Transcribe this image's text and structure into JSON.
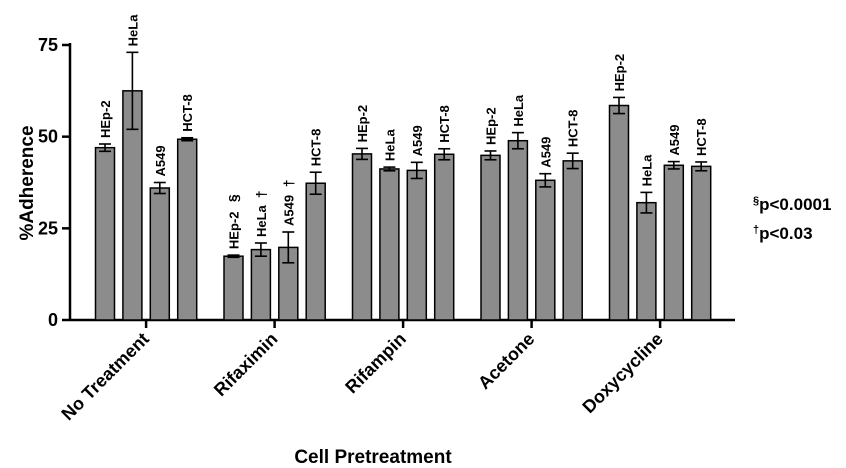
{
  "chart_data": {
    "type": "bar",
    "xlabel": "Cell Pretreatment",
    "ylabel": "%Adherence",
    "ylim": [
      0,
      75
    ],
    "yticks": [
      0,
      25,
      50,
      75
    ],
    "bar_color": "#8c8c8c",
    "groups": [
      {
        "category": "No Treatment",
        "bars": [
          {
            "label": "HEp-2",
            "value": 47,
            "error": 1,
            "mark": ""
          },
          {
            "label": "HeLa",
            "value": 62.5,
            "error": 10.5,
            "mark": ""
          },
          {
            "label": "A549",
            "value": 36,
            "error": 1.5,
            "mark": ""
          },
          {
            "label": "HCT-8",
            "value": 49.3,
            "error": 0.4,
            "mark": ""
          }
        ]
      },
      {
        "category": "Rifaximin",
        "bars": [
          {
            "label": "HEp-2",
            "value": 17.4,
            "error": 0.3,
            "mark": "§"
          },
          {
            "label": "HeLa",
            "value": 19.2,
            "error": 1.8,
            "mark": "†"
          },
          {
            "label": "A549",
            "value": 19.8,
            "error": 4.2,
            "mark": "†"
          },
          {
            "label": "HCT-8",
            "value": 37.3,
            "error": 3,
            "mark": ""
          }
        ]
      },
      {
        "category": "Rifampin",
        "bars": [
          {
            "label": "HEp-2",
            "value": 45.3,
            "error": 1.5,
            "mark": ""
          },
          {
            "label": "HeLa",
            "value": 41.2,
            "error": 0.5,
            "mark": ""
          },
          {
            "label": "A549",
            "value": 40.8,
            "error": 2.2,
            "mark": ""
          },
          {
            "label": "HCT-8",
            "value": 45.2,
            "error": 1.5,
            "mark": ""
          }
        ]
      },
      {
        "category": "Acetone",
        "bars": [
          {
            "label": "HEp-2",
            "value": 44.9,
            "error": 1.2,
            "mark": ""
          },
          {
            "label": "HeLa",
            "value": 48.9,
            "error": 2.2,
            "mark": ""
          },
          {
            "label": "A549",
            "value": 38.1,
            "error": 1.8,
            "mark": ""
          },
          {
            "label": "HCT-8",
            "value": 43.4,
            "error": 2.1,
            "mark": ""
          }
        ]
      },
      {
        "category": "Doxycycline",
        "bars": [
          {
            "label": "HEp-2",
            "value": 58.5,
            "error": 2.2,
            "mark": ""
          },
          {
            "label": "HeLa",
            "value": 32,
            "error": 2.8,
            "mark": ""
          },
          {
            "label": "A549",
            "value": 42.2,
            "error": 1,
            "mark": ""
          },
          {
            "label": "HCT-8",
            "value": 41.9,
            "error": 1.2,
            "mark": ""
          }
        ]
      }
    ],
    "legend": [
      {
        "symbol": "§",
        "text": "p<0.0001"
      },
      {
        "symbol": "†",
        "text": "p<0.03"
      }
    ]
  }
}
